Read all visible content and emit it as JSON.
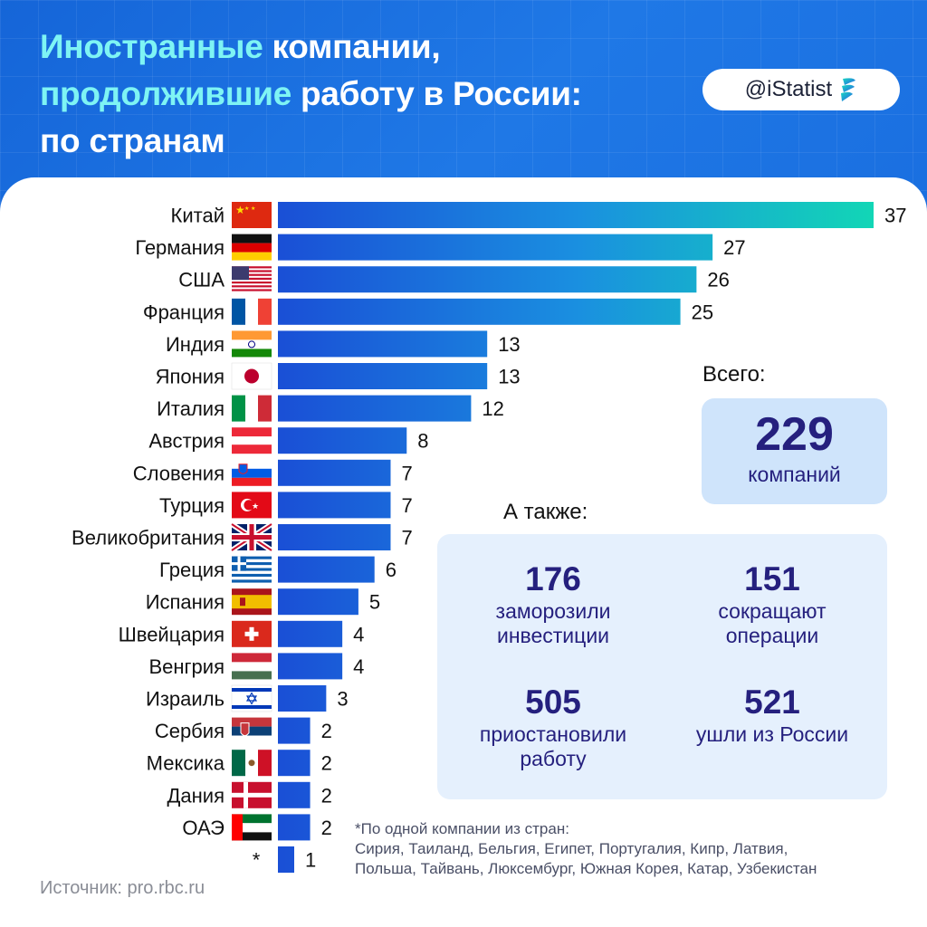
{
  "title": {
    "line1_highlight": "Иностранные",
    "line1_rest": " компании,",
    "line2_highlight": "продолжившие",
    "line2_rest": " работу в России:",
    "line3": "по странам"
  },
  "handle": {
    "text": "@iStatist",
    "icon": "istatist-logo-icon"
  },
  "colors": {
    "header_bg": "#1a6fe0",
    "title_highlight": "#7ef4f4",
    "bar_start": "#1a4fd6",
    "bar_end": "#12d6b6",
    "accent_text": "#25207e"
  },
  "chart_data": {
    "type": "bar",
    "orientation": "horizontal",
    "categories": [
      "Китай",
      "Германия",
      "США",
      "Франция",
      "Индия",
      "Япония",
      "Италия",
      "Австрия",
      "Словения",
      "Турция",
      "Великобритания",
      "Греция",
      "Испания",
      "Швейцария",
      "Венгрия",
      "Израиль",
      "Сербия",
      "Мексика",
      "Дания",
      "ОАЭ",
      "*"
    ],
    "values": [
      37,
      27,
      26,
      25,
      13,
      13,
      12,
      8,
      7,
      7,
      7,
      6,
      5,
      4,
      4,
      3,
      2,
      2,
      2,
      2,
      1
    ],
    "flags": [
      "china-flag-icon",
      "germany-flag-icon",
      "usa-flag-icon",
      "france-flag-icon",
      "india-flag-icon",
      "japan-flag-icon",
      "italy-flag-icon",
      "austria-flag-icon",
      "slovenia-flag-icon",
      "turkey-flag-icon",
      "uk-flag-icon",
      "greece-flag-icon",
      "spain-flag-icon",
      "switzerland-flag-icon",
      "hungary-flag-icon",
      "israel-flag-icon",
      "serbia-flag-icon",
      "mexico-flag-icon",
      "denmark-flag-icon",
      "uae-flag-icon",
      ""
    ],
    "xlim": [
      0,
      37
    ],
    "grid": false
  },
  "totals": {
    "label": "Всего:",
    "value": "229",
    "unit": "компаний"
  },
  "also": {
    "label": "А также:",
    "stats": [
      {
        "value": "176",
        "line1": "заморозили",
        "line2": "инвестиции"
      },
      {
        "value": "151",
        "line1": "сокращают",
        "line2": "операции"
      },
      {
        "value": "505",
        "line1": "приостановили",
        "line2": "работу"
      },
      {
        "value": "521",
        "line1": "ушли из России",
        "line2": ""
      }
    ]
  },
  "footnote": {
    "line1": "*По одной компании из стран:",
    "line2": "Сирия, Таиланд, Бельгия, Египет, Португалия, Кипр, Латвия,",
    "line3": "Польша, Тайвань, Люксембург, Южная Корея, Катар, Узбекистан"
  },
  "source": "Источник: pro.rbc.ru"
}
